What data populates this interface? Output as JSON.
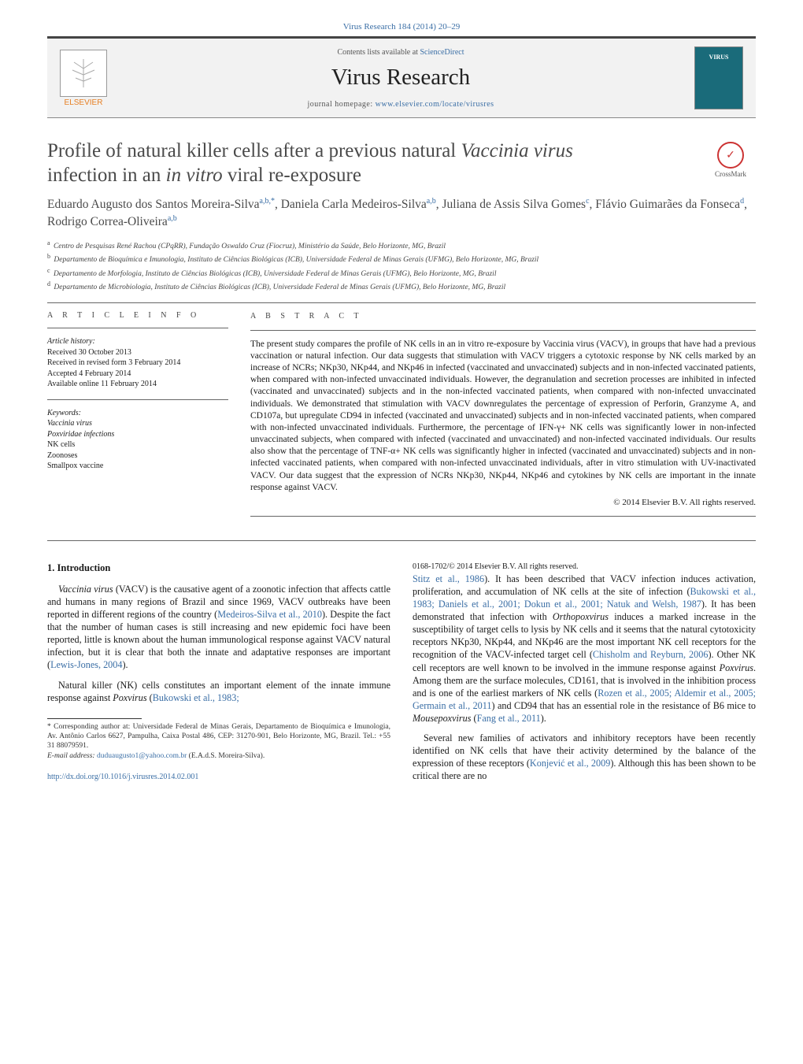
{
  "journal_ref": "Virus Research 184 (2014) 20–29",
  "header": {
    "elsevier_label": "ELSEVIER",
    "contents_prefix": "Contents lists available at ",
    "contents_link": "ScienceDirect",
    "journal_name": "Virus Research",
    "homepage_prefix": "journal homepage: ",
    "homepage_url": "www.elsevier.com/locate/virusres",
    "cover_text": "VIRUS"
  },
  "title": {
    "line1_a": "Profile of natural killer cells after a previous natural ",
    "line1_b": "Vaccinia virus",
    "line2_a": "infection in an ",
    "line2_b": "in vitro",
    "line2_c": " viral re-exposure"
  },
  "crossmark_label": "CrossMark",
  "authors_html": "Eduardo Augusto dos Santos Moreira-Silva<sup>a,b,*</sup>, Daniela Carla Medeiros-Silva<sup>a,b</sup>, Juliana de Assis Silva Gomes<sup>c</sup>, Flávio Guimarães da Fonseca<sup>d</sup>, Rodrigo Correa-Oliveira<sup>a,b</sup>",
  "affiliations": [
    {
      "sup": "a",
      "text": "Centro de Pesquisas René Rachou (CPqRR), Fundação Oswaldo Cruz (Fiocruz), Ministério da Saúde, Belo Horizonte, MG, Brazil"
    },
    {
      "sup": "b",
      "text": "Departamento de Bioquímica e Imunologia, Instituto de Ciências Biológicas (ICB), Universidade Federal de Minas Gerais (UFMG), Belo Horizonte, MG, Brazil"
    },
    {
      "sup": "c",
      "text": "Departamento de Morfologia, Instituto de Ciências Biológicas (ICB), Universidade Federal de Minas Gerais (UFMG), Belo Horizonte, MG, Brazil"
    },
    {
      "sup": "d",
      "text": "Departamento de Microbiologia, Instituto de Ciências Biológicas (ICB), Universidade Federal de Minas Gerais (UFMG), Belo Horizonte, MG, Brazil"
    }
  ],
  "info_heading": "A R T I C L E   I N F O",
  "abstract_heading": "A B S T R A C T",
  "history": {
    "label": "Article history:",
    "received": "Received 30 October 2013",
    "revised": "Received in revised form 3 February 2014",
    "accepted": "Accepted 4 February 2014",
    "online": "Available online 11 February 2014"
  },
  "keywords_label": "Keywords:",
  "keywords": [
    "Vaccinia virus",
    "Poxviridae infections",
    "NK cells",
    "Zoonoses",
    "Smallpox vaccine"
  ],
  "abstract_text": "The present study compares the profile of NK cells in an in vitro re-exposure by Vaccinia virus (VACV), in groups that have had a previous vaccination or natural infection. Our data suggests that stimulation with VACV triggers a cytotoxic response by NK cells marked by an increase of NCRs; NKp30, NKp44, and NKp46 in infected (vaccinated and unvaccinated) subjects and in non-infected vaccinated patients, when compared with non-infected unvaccinated individuals. However, the degranulation and secretion processes are inhibited in infected (vaccinated and unvaccinated) subjects and in the non-infected vaccinated patients, when compared with non-infected unvaccinated individuals. We demonstrated that stimulation with VACV downregulates the percentage of expression of Perforin, Granzyme A, and CD107a, but upregulate CD94 in infected (vaccinated and unvaccinated) subjects and in non-infected vaccinated patients, when compared with non-infected unvaccinated individuals. Furthermore, the percentage of IFN-γ+ NK cells was significantly lower in non-infected unvaccinated subjects, when compared with infected (vaccinated and unvaccinated) and non-infected vaccinated individuals. Our results also show that the percentage of TNF-α+ NK cells was significantly higher in infected (vaccinated and unvaccinated) subjects and in non-infected vaccinated patients, when compared with non-infected unvaccinated individuals, after in vitro stimulation with UV-inactivated VACV. Our data suggest that the expression of NCRs NKp30, NKp44, NKp46 and cytokines by NK cells are important in the innate response against VACV.",
  "copyright": "© 2014 Elsevier B.V. All rights reserved.",
  "intro_heading": "1.  Introduction",
  "body": {
    "p1_a": "Vaccinia virus",
    "p1_b": " (VACV) is the causative agent of a zoonotic infection that affects cattle and humans in many regions of Brazil and since 1969, VACV outbreaks have been reported in different regions of the country (",
    "p1_r1": "Medeiros-Silva et al., 2010",
    "p1_c": "). Despite the fact that the number of human cases is still increasing and new epidemic foci have been reported, little is known about the human immunological response against VACV natural infection, but it is clear that both the innate and adaptative responses are important (",
    "p1_r2": "Lewis-Jones, 2004",
    "p1_d": ").",
    "p2_a": "Natural killer (NK) cells constitutes an important element of the innate immune response against ",
    "p2_b": "Poxvirus",
    "p2_c": " (",
    "p2_r1": "Bukowski et al., 1983;",
    "p2_r1b": "Stitz et al., 1986",
    "p2_d": "). It has been described that VACV infection induces activation, proliferation, and accumulation of NK cells at the site of infection (",
    "p2_r2": "Bukowski et al., 1983; Daniels et al., 2001; Dokun et al., 2001; Natuk and Welsh, 1987",
    "p2_e": "). It has been demonstrated that infection with ",
    "p2_f": "Orthopoxvirus",
    "p2_g": " induces a marked increase in the susceptibility of target cells to lysis by NK cells and it seems that the natural cytotoxicity receptors NKp30, NKp44, and NKp46 are the most important NK cell receptors for the recognition of the VACV-infected target cell (",
    "p2_r3": "Chisholm and Reyburn, 2006",
    "p2_h": "). Other NK cell receptors are well known to be involved in the immune response against ",
    "p2_i": "Poxvirus",
    "p2_j": ". Among them are the surface molecules, CD161, that is involved in the inhibition process and is one of the earliest markers of NK cells (",
    "p2_r4": "Rozen et al., 2005; Aldemir et al., 2005; Germain et al., 2011",
    "p2_k": ") and CD94 that has an essential role in the resistance of B6 mice to ",
    "p2_l": "Mousepoxvirus",
    "p2_m": " (",
    "p2_r5": "Fang et al., 2011",
    "p2_n": ").",
    "p3_a": "Several new families of activators and inhibitory receptors have been recently identified on NK cells that have their activity determined by the balance of the expression of these receptors (",
    "p3_r1": "Konjević et al., 2009",
    "p3_b": "). Although this has been shown to be critical there are no"
  },
  "footnote": {
    "corr": "* Corresponding author at: Universidade Federal de Minas Gerais, Departamento de Bioquímica e Imunologia, Av. Antônio Carlos 6627, Pampulha, Caixa Postal 486, CEP: 31270-901, Belo Horizonte, MG, Brazil. Tel.: +55 31 88079591.",
    "email_label": "E-mail address: ",
    "email": "duduaugusto1@yahoo.com.br",
    "email_suffix": " (E.A.d.S. Moreira-Silva)."
  },
  "footer": {
    "doi": "http://dx.doi.org/10.1016/j.virusres.2014.02.001",
    "issn_line": "0168-1702/© 2014 Elsevier B.V. All rights reserved."
  }
}
